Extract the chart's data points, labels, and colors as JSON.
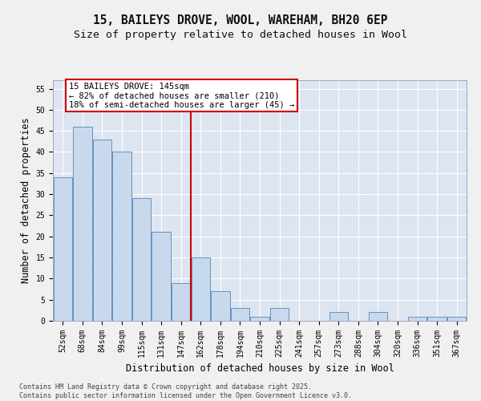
{
  "title_line1": "15, BAILEYS DROVE, WOOL, WAREHAM, BH20 6EP",
  "title_line2": "Size of property relative to detached houses in Wool",
  "xlabel": "Distribution of detached houses by size in Wool",
  "ylabel": "Number of detached properties",
  "categories": [
    "52sqm",
    "68sqm",
    "84sqm",
    "99sqm",
    "115sqm",
    "131sqm",
    "147sqm",
    "162sqm",
    "178sqm",
    "194sqm",
    "210sqm",
    "225sqm",
    "241sqm",
    "257sqm",
    "273sqm",
    "288sqm",
    "304sqm",
    "320sqm",
    "336sqm",
    "351sqm",
    "367sqm"
  ],
  "values": [
    34,
    46,
    43,
    40,
    29,
    21,
    9,
    15,
    7,
    3,
    1,
    3,
    0,
    0,
    2,
    0,
    2,
    0,
    1,
    1,
    1
  ],
  "bar_color": "#c8d9ee",
  "bar_edge_color": "#5585b5",
  "vline_x_index": 6,
  "vline_color": "#cc0000",
  "annotation_text": "15 BAILEYS DROVE: 145sqm\n← 82% of detached houses are smaller (210)\n18% of semi-detached houses are larger (45) →",
  "annotation_box_color": "#ffffff",
  "annotation_box_edge": "#cc0000",
  "ylim": [
    0,
    57
  ],
  "yticks": [
    0,
    5,
    10,
    15,
    20,
    25,
    30,
    35,
    40,
    45,
    50,
    55
  ],
  "background_color": "#dde5f0",
  "grid_color": "#ffffff",
  "fig_background": "#f0f0f0",
  "footer_text": "Contains HM Land Registry data © Crown copyright and database right 2025.\nContains public sector information licensed under the Open Government Licence v3.0.",
  "title_fontsize": 10.5,
  "subtitle_fontsize": 9.5,
  "tick_fontsize": 7,
  "label_fontsize": 8.5,
  "annotation_fontsize": 7.5,
  "footer_fontsize": 6
}
